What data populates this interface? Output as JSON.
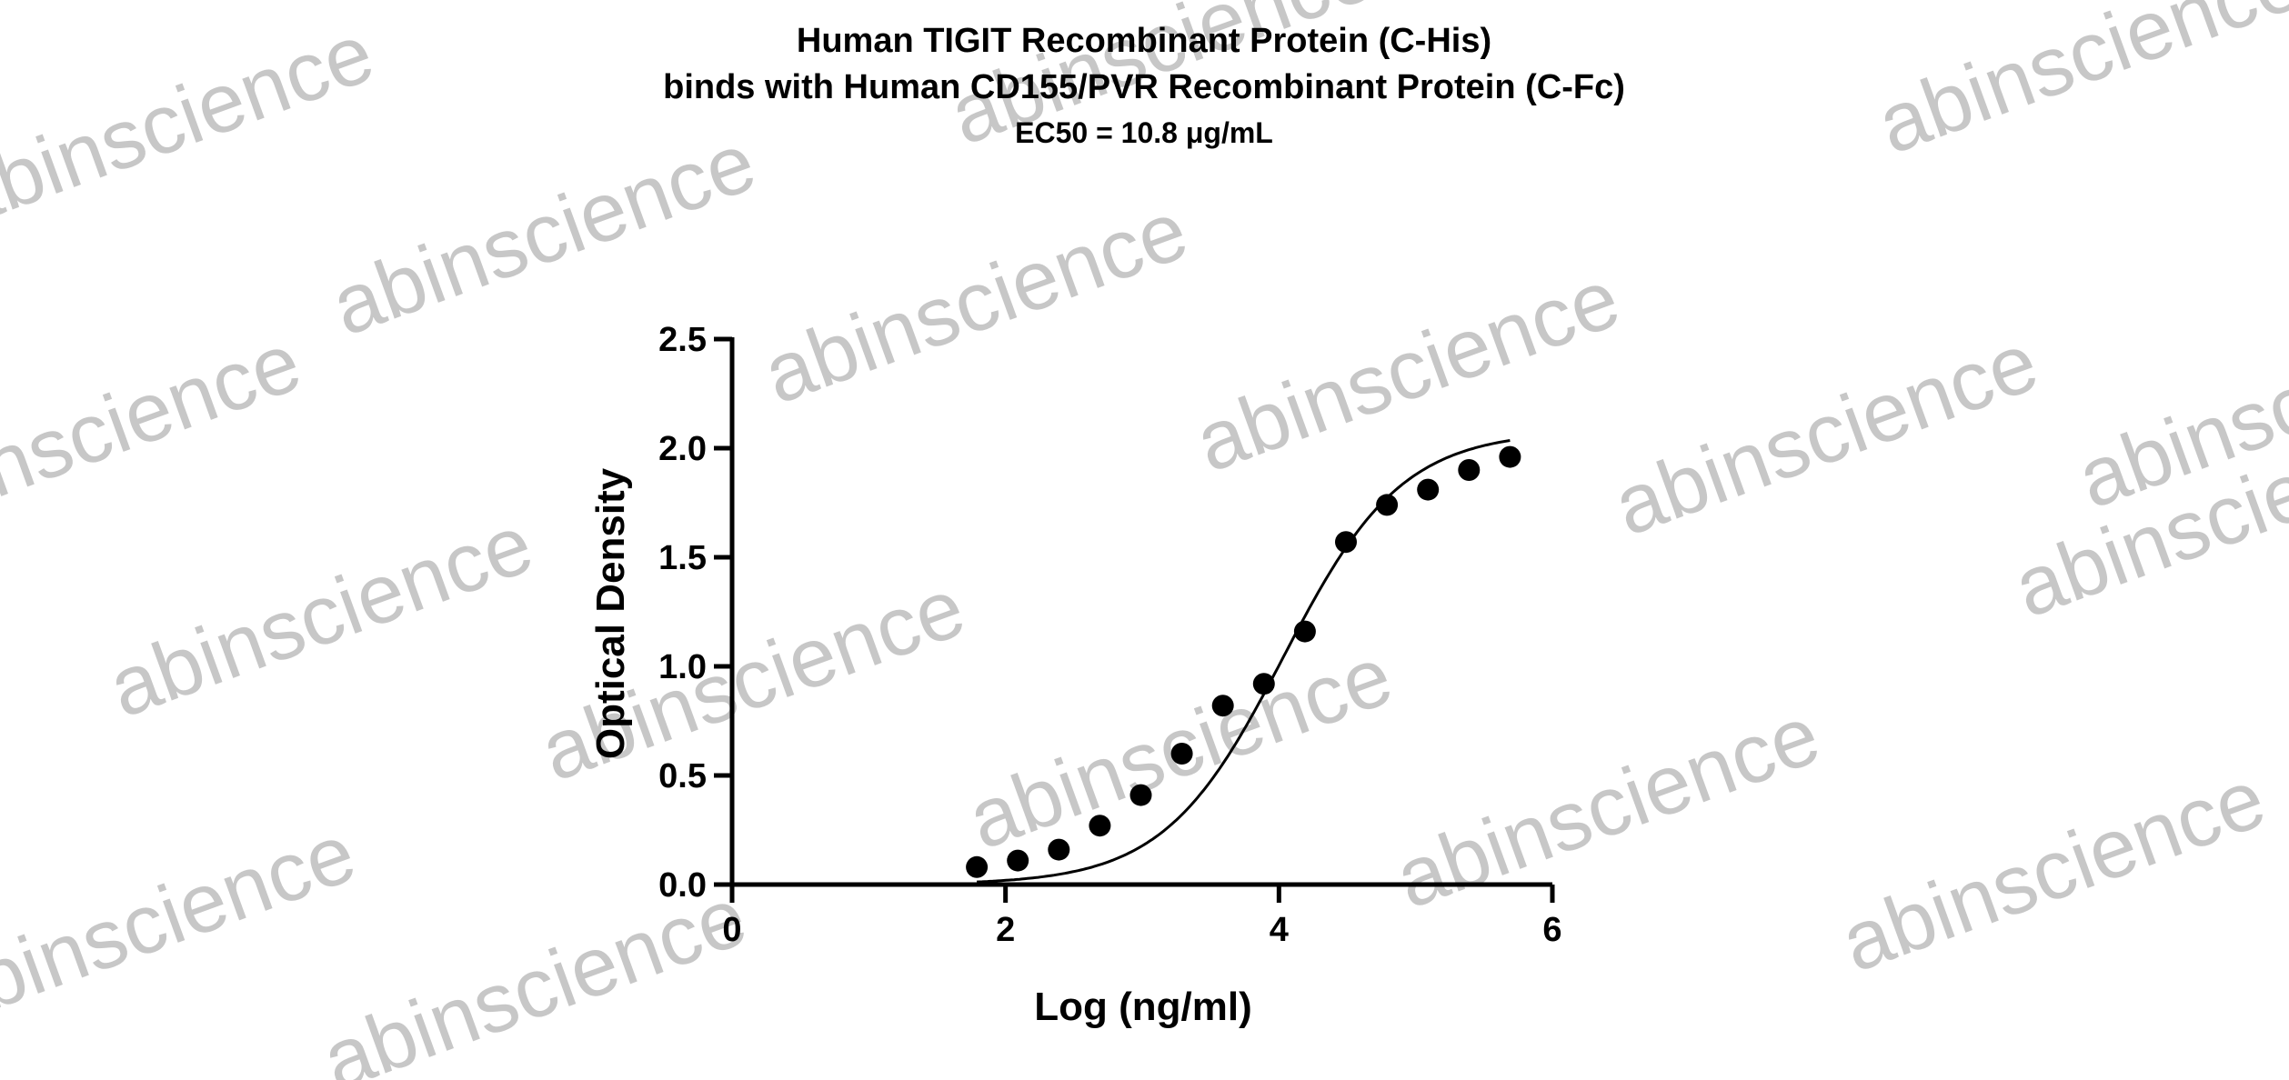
{
  "watermark": "abinscience",
  "chart_data": {
    "type": "scatter",
    "title": "Human TIGIT Recombinant Protein (C-His)",
    "subtitle": "binds with Human CD155/PVR Recombinant Protein (C-Fc)",
    "annotation": "EC50 = 10.8 μg/mL",
    "xlabel": "Log (ng/ml)",
    "ylabel": "Optical Density",
    "xlim": [
      0,
      6
    ],
    "ylim": [
      0,
      2.5
    ],
    "xticks": [
      "0",
      "2",
      "4",
      "6"
    ],
    "yticks": [
      "0.0",
      "0.5",
      "1.0",
      "1.5",
      "2.0",
      "2.5"
    ],
    "grid": false,
    "series": [
      {
        "marker": "circle",
        "x": [
          1.79,
          2.09,
          2.39,
          2.69,
          2.99,
          3.29,
          3.59,
          3.89,
          4.19,
          4.49,
          4.79,
          5.09,
          5.39,
          5.69
        ],
        "y": [
          0.08,
          0.11,
          0.16,
          0.27,
          0.41,
          0.6,
          0.82,
          0.92,
          1.16,
          1.57,
          1.74,
          1.81,
          1.9,
          1.96
        ]
      }
    ],
    "fit": {
      "type": "four-parameter logistic",
      "bottom": 0.0,
      "top": 2.08,
      "logEC50": 4.03,
      "hill": 1.0
    }
  }
}
